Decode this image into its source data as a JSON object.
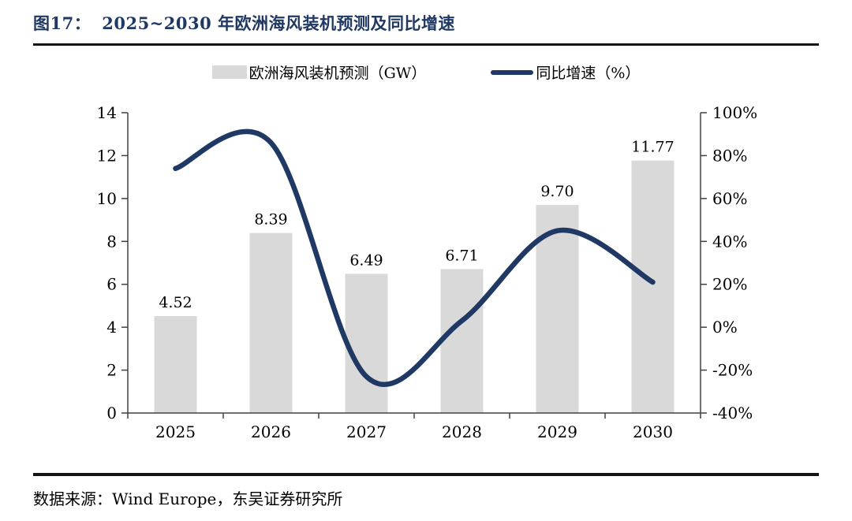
{
  "figure": {
    "label": "图17：",
    "title": "2025~2030 年欧洲海风装机预测及同比增速"
  },
  "legend": [
    {
      "type": "bar",
      "label": "欧洲海风装机预测（GW）"
    },
    {
      "type": "line",
      "label": "同比增速（%）"
    }
  ],
  "source": "数据来源：Wind Europe，东吴证券研究所",
  "colors": {
    "navy": "#1F3864",
    "bar_gray": "#D9D9D9",
    "axis": "#404040",
    "rule": "#151515"
  },
  "chart_data": {
    "type": "bar",
    "subtype": "combo-bar-line",
    "categories": [
      "2025",
      "2026",
      "2027",
      "2028",
      "2029",
      "2030"
    ],
    "series": [
      {
        "name": "欧洲海风装机预测（GW）",
        "type": "bar",
        "axis": "left",
        "values": [
          4.52,
          8.39,
          6.49,
          6.71,
          9.7,
          11.77
        ],
        "labels": [
          "4.52",
          "8.39",
          "6.49",
          "6.71",
          "9.70",
          "11.77"
        ]
      },
      {
        "name": "同比增速（%）",
        "type": "line",
        "axis": "right",
        "values": [
          74,
          86,
          -23,
          3,
          45,
          21
        ],
        "smooth": true
      }
    ],
    "left_axis": {
      "min": 0,
      "max": 14,
      "step": 2,
      "ticks": [
        "0",
        "2",
        "4",
        "6",
        "8",
        "10",
        "12",
        "14"
      ]
    },
    "right_axis": {
      "min": -40,
      "max": 100,
      "step": 20,
      "ticks": [
        "-40%",
        "-20%",
        "0%",
        "20%",
        "40%",
        "60%",
        "80%",
        "100%"
      ]
    },
    "grid": false,
    "legend_position": "top",
    "title": "2025~2030 年欧洲海风装机预测及同比增速",
    "xlabel": "",
    "ylabel_left": "GW",
    "ylabel_right": "%"
  }
}
